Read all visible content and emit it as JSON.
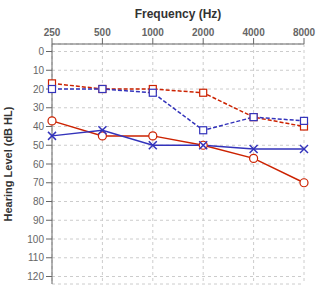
{
  "chart_data": {
    "type": "line",
    "x_label": "Frequency (Hz)",
    "y_label": "Hearing Level (dB HL)",
    "categories": [
      "250",
      "500",
      "1000",
      "2000",
      "4000",
      "8000"
    ],
    "series": [
      {
        "color": "#cc2200",
        "values": [
          17,
          20,
          20,
          22,
          35,
          40
        ],
        "marker": "square",
        "line_style": "dashed"
      },
      {
        "color": "#3333bb",
        "values": [
          20,
          20,
          22,
          42,
          35,
          37
        ],
        "marker": "square",
        "line_style": "dashed"
      },
      {
        "color": "#cc2200",
        "values": [
          37,
          45,
          45,
          50,
          57,
          70
        ],
        "marker": "circle",
        "line_style": "solid"
      },
      {
        "color": "#3333bb",
        "values": [
          45,
          42,
          50,
          50,
          52,
          52
        ],
        "marker": "x",
        "line_style": "solid"
      }
    ],
    "ylim": [
      124,
      -4
    ],
    "yticks": [
      0,
      10,
      20,
      30,
      40,
      50,
      60,
      70,
      80,
      90,
      100,
      110,
      120
    ],
    "grid": true
  }
}
